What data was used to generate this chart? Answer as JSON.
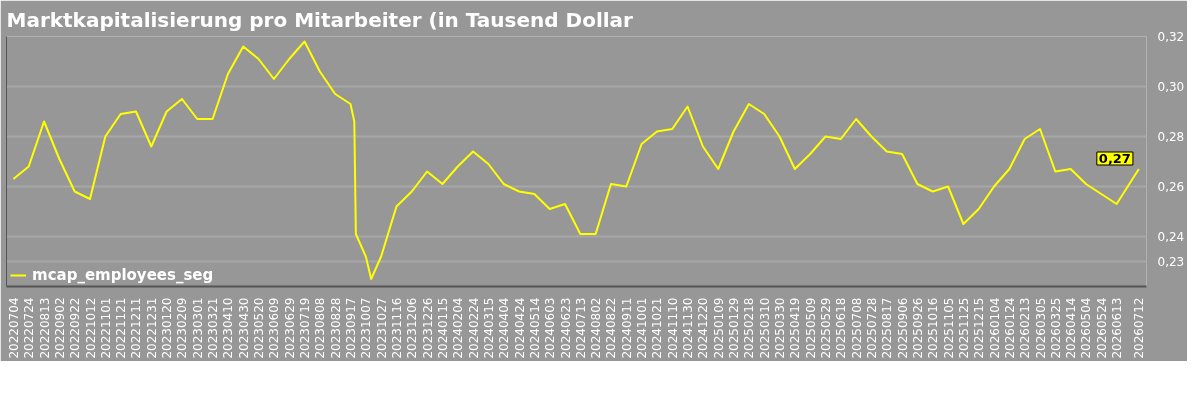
{
  "chart_data": {
    "type": "line",
    "title": "Marktkapitalisierung pro Mitarbeiter (in Tausend Dollar",
    "x": [
      "2022-07-04",
      "2022-07-24",
      "2022-08-13",
      "2022-09-02",
      "2022-09-22",
      "2022-10-12",
      "2022-11-01",
      "2022-11-21",
      "2022-12-11",
      "2022-12-31",
      "2023-01-20",
      "2023-02-09",
      "2023-03-01",
      "2023-03-21",
      "2023-04-10",
      "2023-04-30",
      "2023-05-20",
      "2023-06-09",
      "2023-06-29",
      "2023-07-19",
      "2023-08-08",
      "2023-08-28",
      "2023-09-17",
      "2023-09-22",
      "2023-09-24",
      "2023-10-07",
      "2023-10-14",
      "2023-10-27",
      "2023-11-16",
      "2023-12-06",
      "2023-12-26",
      "2024-01-15",
      "2024-02-04",
      "2024-02-24",
      "2024-03-15",
      "2024-04-04",
      "2024-04-24",
      "2024-05-14",
      "2024-06-03",
      "2024-06-23",
      "2024-07-13",
      "2024-08-02",
      "2024-08-22",
      "2024-09-11",
      "2024-10-01",
      "2024-10-21",
      "2024-11-10",
      "2024-11-30",
      "2024-12-20",
      "2025-01-09",
      "2025-01-29",
      "2025-02-18",
      "2025-03-10",
      "2025-03-30",
      "2025-04-19",
      "2025-05-09",
      "2025-05-29",
      "2025-06-18",
      "2025-07-08",
      "2025-07-28",
      "2025-08-17",
      "2025-09-06",
      "2025-09-26",
      "2025-10-16",
      "2025-11-05",
      "2025-11-25",
      "2025-12-15",
      "2026-01-04",
      "2026-01-24",
      "2026-02-13",
      "2026-03-05",
      "2026-03-25",
      "2026-04-14",
      "2026-05-04",
      "2026-05-24",
      "2026-06-13",
      "2026-07-12"
    ],
    "series": [
      {
        "name": "mcap_employees_seg",
        "color": "#ffff00",
        "values": [
          0.263,
          0.268,
          0.286,
          0.271,
          0.258,
          0.255,
          0.28,
          0.289,
          0.29,
          0.276,
          0.29,
          0.295,
          0.287,
          0.287,
          0.305,
          0.316,
          0.311,
          0.303,
          0.311,
          0.318,
          0.306,
          0.297,
          0.293,
          0.286,
          0.241,
          0.232,
          0.223,
          0.232,
          0.252,
          0.258,
          0.266,
          0.261,
          0.268,
          0.274,
          0.269,
          0.261,
          0.258,
          0.257,
          0.251,
          0.253,
          0.241,
          0.241,
          0.261,
          0.26,
          0.277,
          0.282,
          0.283,
          0.292,
          0.276,
          0.267,
          0.282,
          0.293,
          0.289,
          0.28,
          0.267,
          0.273,
          0.28,
          0.279,
          0.287,
          0.28,
          0.274,
          0.273,
          0.261,
          0.258,
          0.26,
          0.245,
          0.251,
          0.26,
          0.267,
          0.279,
          0.283,
          0.266,
          0.267,
          0.261,
          0.257,
          0.253,
          0.267
        ]
      }
    ],
    "xlim": [
      "2022-06-25",
      "2026-07-22"
    ],
    "xticks": [
      {
        "value": "2022-07-04",
        "label": "20220704"
      },
      {
        "value": "2022-07-24",
        "label": "20220724"
      },
      {
        "value": "2022-08-13",
        "label": "20220813"
      },
      {
        "value": "2022-09-02",
        "label": "20220902"
      },
      {
        "value": "2022-09-22",
        "label": "20220922"
      },
      {
        "value": "2022-10-12",
        "label": "20221012"
      },
      {
        "value": "2022-11-01",
        "label": "20221101"
      },
      {
        "value": "2022-11-21",
        "label": "20221121"
      },
      {
        "value": "2022-12-11",
        "label": "20221211"
      },
      {
        "value": "2022-12-31",
        "label": "20221231"
      },
      {
        "value": "2023-01-20",
        "label": "20230120"
      },
      {
        "value": "2023-02-09",
        "label": "20230209"
      },
      {
        "value": "2023-03-01",
        "label": "20230301"
      },
      {
        "value": "2023-03-21",
        "label": "20230321"
      },
      {
        "value": "2023-04-10",
        "label": "20230410"
      },
      {
        "value": "2023-04-30",
        "label": "20230430"
      },
      {
        "value": "2023-05-20",
        "label": "20230520"
      },
      {
        "value": "2023-06-09",
        "label": "20230609"
      },
      {
        "value": "2023-06-29",
        "label": "20230629"
      },
      {
        "value": "2023-07-19",
        "label": "20230719"
      },
      {
        "value": "2023-08-08",
        "label": "20230808"
      },
      {
        "value": "2023-08-28",
        "label": "20230828"
      },
      {
        "value": "2023-09-17",
        "label": "20230917"
      },
      {
        "value": "2023-10-07",
        "label": "20231007"
      },
      {
        "value": "2023-10-27",
        "label": "20231027"
      },
      {
        "value": "2023-11-16",
        "label": "20231116"
      },
      {
        "value": "2023-12-06",
        "label": "20231206"
      },
      {
        "value": "2023-12-26",
        "label": "20231226"
      },
      {
        "value": "2024-01-15",
        "label": "20240115"
      },
      {
        "value": "2024-02-04",
        "label": "20240204"
      },
      {
        "value": "2024-02-24",
        "label": "20240224"
      },
      {
        "value": "2024-03-15",
        "label": "20240315"
      },
      {
        "value": "2024-04-04",
        "label": "20240404"
      },
      {
        "value": "2024-04-24",
        "label": "20240424"
      },
      {
        "value": "2024-05-14",
        "label": "20240514"
      },
      {
        "value": "2024-06-03",
        "label": "20240603"
      },
      {
        "value": "2024-06-23",
        "label": "20240623"
      },
      {
        "value": "2024-07-13",
        "label": "20240713"
      },
      {
        "value": "2024-08-02",
        "label": "20240802"
      },
      {
        "value": "2024-08-22",
        "label": "20240822"
      },
      {
        "value": "2024-09-11",
        "label": "20240911"
      },
      {
        "value": "2024-10-01",
        "label": "20241001"
      },
      {
        "value": "2024-10-21",
        "label": "20241021"
      },
      {
        "value": "2024-11-10",
        "label": "20241110"
      },
      {
        "value": "2024-11-30",
        "label": "20241130"
      },
      {
        "value": "2024-12-20",
        "label": "20241220"
      },
      {
        "value": "2025-01-09",
        "label": "20250109"
      },
      {
        "value": "2025-01-29",
        "label": "20250129"
      },
      {
        "value": "2025-02-18",
        "label": "20250218"
      },
      {
        "value": "2025-03-10",
        "label": "20250310"
      },
      {
        "value": "2025-03-30",
        "label": "20250330"
      },
      {
        "value": "2025-04-19",
        "label": "20250419"
      },
      {
        "value": "2025-05-09",
        "label": "20250509"
      },
      {
        "value": "2025-05-29",
        "label": "20250529"
      },
      {
        "value": "2025-06-18",
        "label": "20250618"
      },
      {
        "value": "2025-07-08",
        "label": "20250708"
      },
      {
        "value": "2025-07-28",
        "label": "20250728"
      },
      {
        "value": "2025-08-17",
        "label": "20250817"
      },
      {
        "value": "2025-09-06",
        "label": "20250906"
      },
      {
        "value": "2025-09-26",
        "label": "20250926"
      },
      {
        "value": "2025-10-16",
        "label": "20251016"
      },
      {
        "value": "2025-11-05",
        "label": "20251105"
      },
      {
        "value": "2025-11-25",
        "label": "20251125"
      },
      {
        "value": "2025-12-15",
        "label": "20251215"
      },
      {
        "value": "2026-01-04",
        "label": "20260104"
      },
      {
        "value": "2026-01-24",
        "label": "20260124"
      },
      {
        "value": "2026-02-13",
        "label": "20260213"
      },
      {
        "value": "2026-03-05",
        "label": "20260305"
      },
      {
        "value": "2026-03-25",
        "label": "20260325"
      },
      {
        "value": "2026-04-14",
        "label": "20260414"
      },
      {
        "value": "2026-05-04",
        "label": "20260504"
      },
      {
        "value": "2026-05-24",
        "label": "20260524"
      },
      {
        "value": "2026-06-13",
        "label": "20260613"
      },
      {
        "value": "2026-07-12",
        "label": "20260712"
      }
    ],
    "ylim": [
      0.22,
      0.32
    ],
    "yticks": [
      {
        "value": 0.23,
        "label": "0,23"
      },
      {
        "value": 0.24,
        "label": "0,24"
      },
      {
        "value": 0.26,
        "label": "0,26"
      },
      {
        "value": 0.28,
        "label": "0,28"
      },
      {
        "value": 0.3,
        "label": "0,30"
      },
      {
        "value": 0.32,
        "label": "0,32"
      }
    ],
    "grid": "y",
    "legend": "bottom left",
    "marker": "none",
    "line_style": "solid",
    "annotations": [
      {
        "text": "0,27",
        "x": "2026-07-12",
        "y": 0.267
      }
    ]
  }
}
